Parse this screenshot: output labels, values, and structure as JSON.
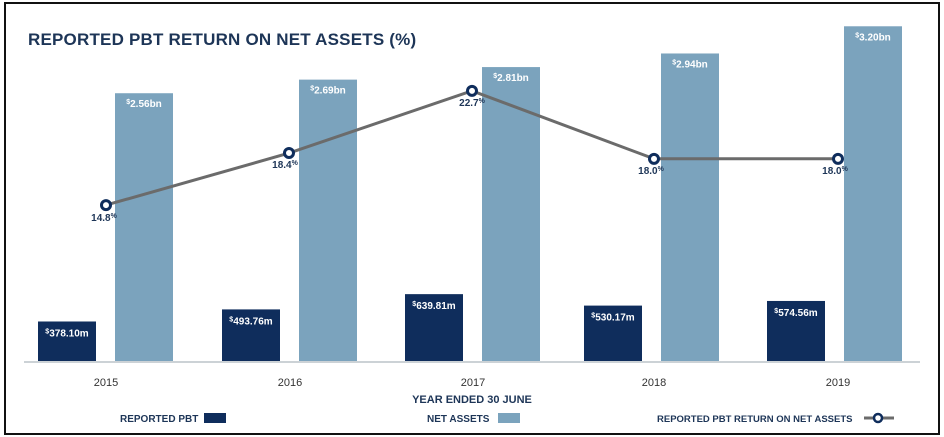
{
  "chart_data": {
    "type": "bar",
    "title": "REPORTED PBT RETURN ON NET ASSETS (%)",
    "xlabel": "YEAR ENDED 30 JUNE",
    "categories": [
      "2015",
      "2016",
      "2017",
      "2018",
      "2019"
    ],
    "series": [
      {
        "name": "REPORTED PBT",
        "type": "bar",
        "color": "#0f2d5c",
        "values": [
          378.1,
          493.76,
          639.81,
          530.17,
          574.56
        ],
        "unit": "m",
        "labels": [
          "378.10m",
          "493.76m",
          "639.81m",
          "530.17m",
          "574.56m"
        ]
      },
      {
        "name": "NET ASSETS",
        "type": "bar",
        "color": "#7ba3bd",
        "values": [
          2.56,
          2.69,
          2.81,
          2.94,
          3.2
        ],
        "unit": "bn",
        "labels": [
          "2.56bn",
          "2.69bn",
          "2.81bn",
          "2.94bn",
          "3.20bn"
        ]
      },
      {
        "name": "REPORTED PBT RETURN ON NET ASSETS",
        "type": "line",
        "color": "#6b6b6b",
        "marker_color": "#0f2d5c",
        "values": [
          14.8,
          18.4,
          22.7,
          18.0,
          18.0
        ],
        "unit": "%",
        "labels": [
          "14.8",
          "18.4",
          "22.7",
          "18.0",
          "18.0"
        ]
      }
    ],
    "currency_symbol": "$",
    "percent_symbol": "%",
    "legend": "bottom",
    "grid": false
  }
}
